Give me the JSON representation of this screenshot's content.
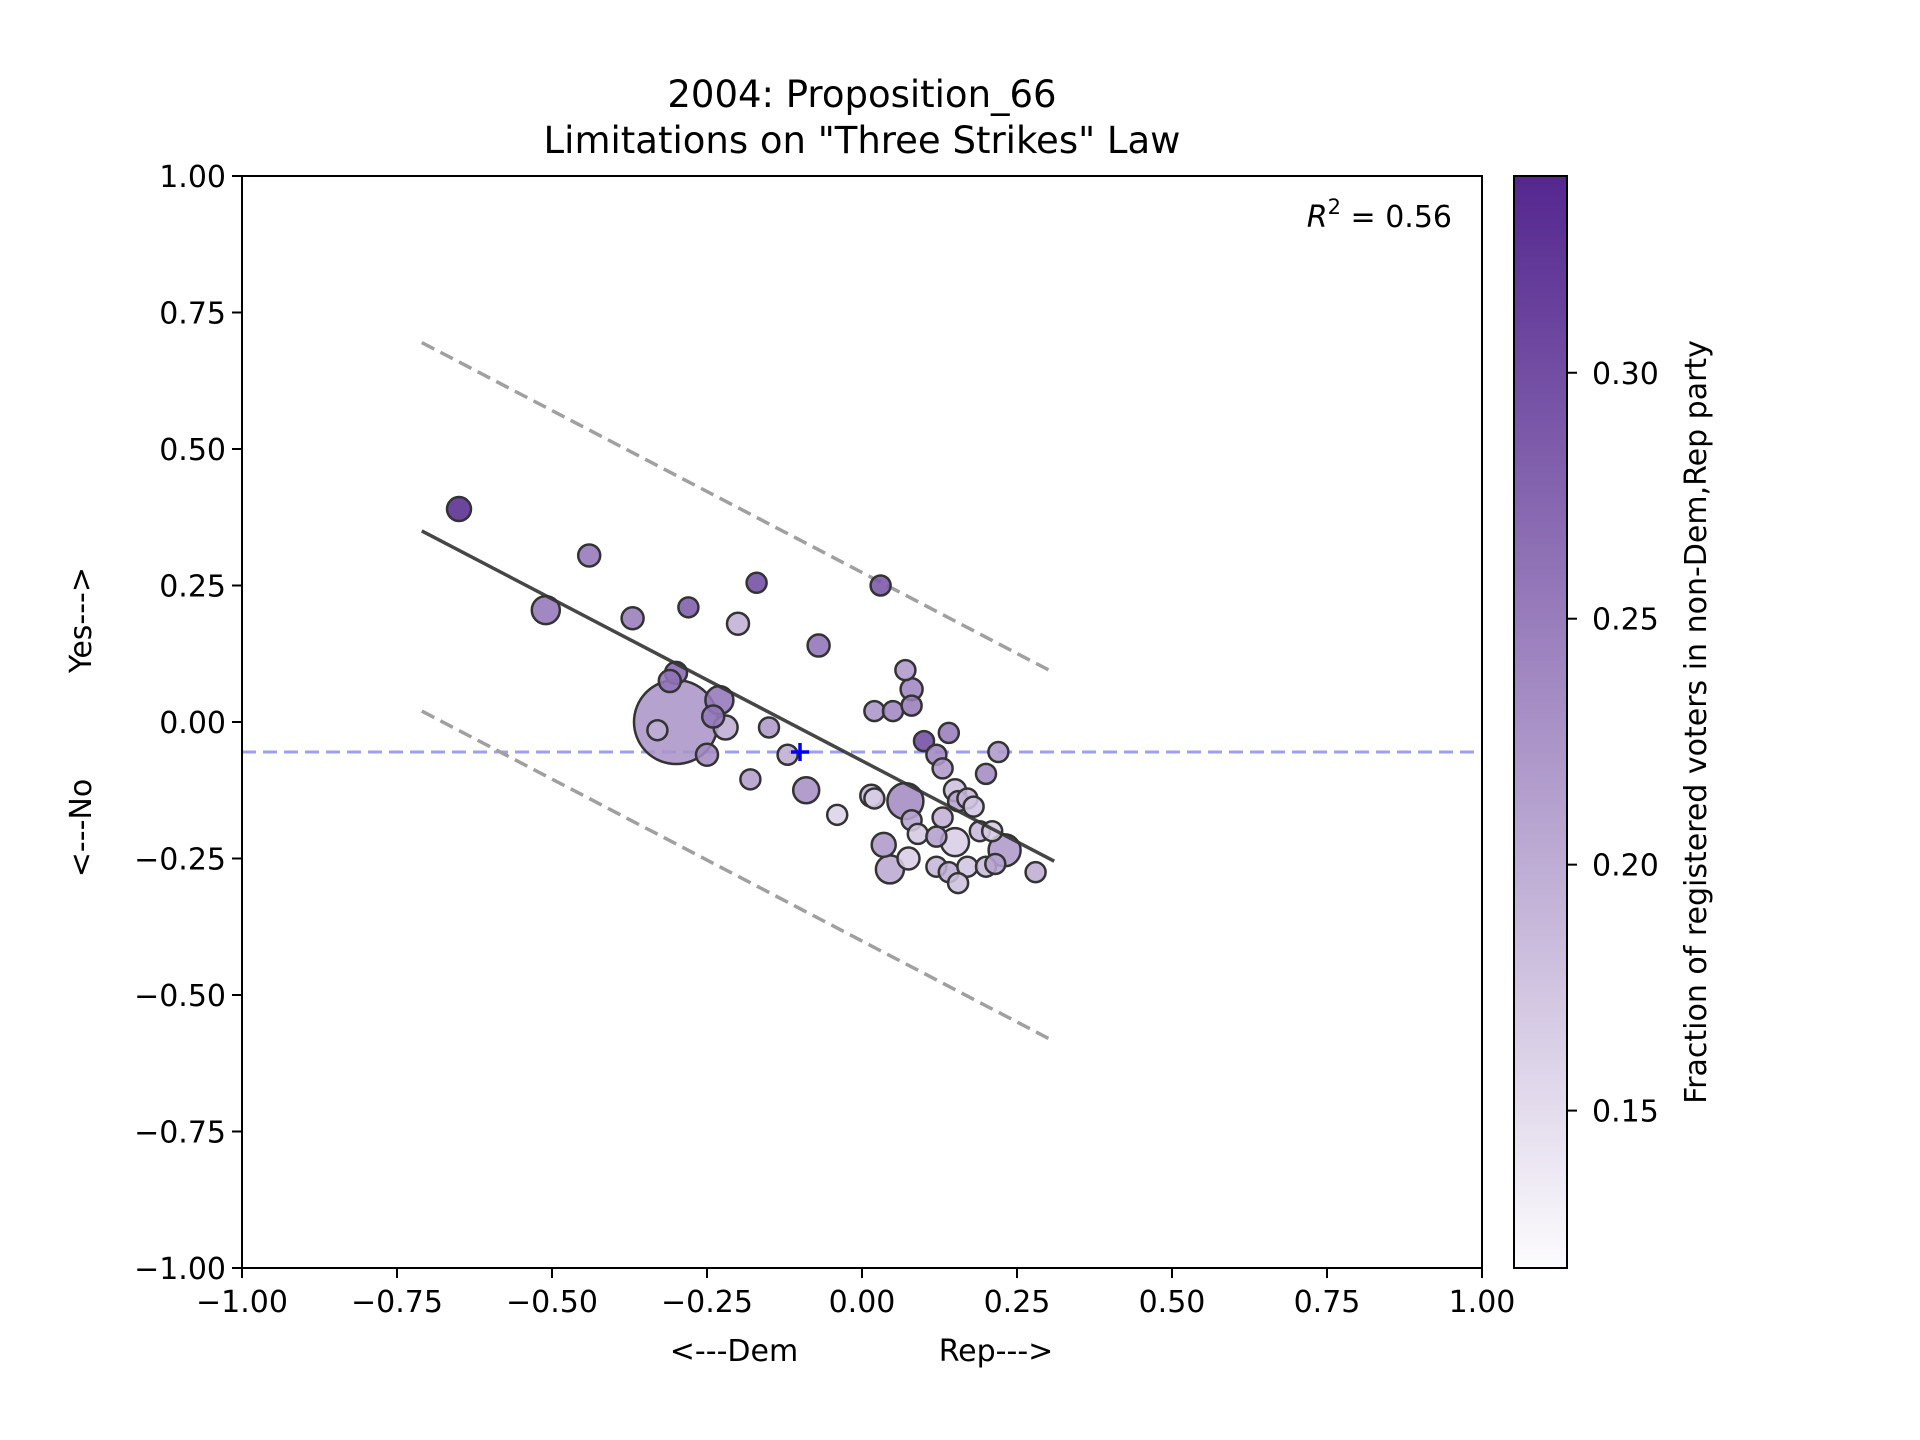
{
  "chart_data": {
    "type": "scatter",
    "title": "2004: Proposition_66",
    "subtitle": "Limitations on \"Three Strikes\" Law",
    "xlabel_left": "<---Dem",
    "xlabel_right": "Rep--->",
    "ylabel_bottom": "<---No",
    "ylabel_top": "Yes--->",
    "xlim": [
      -1.0,
      1.0
    ],
    "ylim": [
      -1.0,
      1.0
    ],
    "x_ticks": [
      -1.0,
      -0.75,
      -0.5,
      -0.25,
      0.0,
      0.25,
      0.5,
      0.75,
      1.0
    ],
    "y_ticks": [
      -1.0,
      -0.75,
      -0.5,
      -0.25,
      0.0,
      0.25,
      0.5,
      0.75,
      1.0
    ],
    "x_tick_labels": [
      "−1.00",
      "−0.75",
      "−0.50",
      "−0.25",
      "0.00",
      "0.25",
      "0.50",
      "0.75",
      "1.00"
    ],
    "y_tick_labels": [
      "−1.00",
      "−0.75",
      "−0.50",
      "−0.25",
      "0.00",
      "0.25",
      "0.50",
      "0.75",
      "1.00"
    ],
    "annotation": {
      "prefix": "R",
      "sup": "2",
      "suffix": " = 0.56"
    },
    "grid": false,
    "colorbar": {
      "label": "Fraction of registered voters in non-Dem,Rep party",
      "range": [
        0.118,
        0.34
      ],
      "ticks": [
        0.15,
        0.2,
        0.25,
        0.3
      ],
      "tick_labels": [
        "0.15",
        "0.20",
        "0.25",
        "0.30"
      ],
      "color_low": "#fcfbfd",
      "color_high": "#54278f"
    },
    "fit_line": {
      "x": [
        -0.71,
        0.31
      ],
      "y": [
        0.35,
        -0.255
      ]
    },
    "upper_band": {
      "x": [
        -0.71,
        0.31
      ],
      "y": [
        0.695,
        0.09
      ]
    },
    "lower_band": {
      "x": [
        -0.71,
        0.31
      ],
      "y": [
        0.02,
        -0.585
      ]
    },
    "mean_line_y": -0.055,
    "mean_marker": {
      "x": -0.1,
      "y": -0.055
    },
    "line_colors": {
      "fit": "#333333",
      "band": "#a0a0a0",
      "mean": "#8080ee",
      "marker": "#0000ff"
    },
    "points": [
      {
        "x": -0.65,
        "y": 0.39,
        "s": 12,
        "c": 0.335
      },
      {
        "x": -0.44,
        "y": 0.305,
        "s": 11,
        "c": 0.255
      },
      {
        "x": -0.51,
        "y": 0.205,
        "s": 14,
        "c": 0.255
      },
      {
        "x": -0.37,
        "y": 0.19,
        "s": 11,
        "c": 0.25
      },
      {
        "x": -0.28,
        "y": 0.21,
        "s": 10,
        "c": 0.285
      },
      {
        "x": -0.2,
        "y": 0.18,
        "s": 11,
        "c": 0.195
      },
      {
        "x": -0.17,
        "y": 0.255,
        "s": 10,
        "c": 0.3
      },
      {
        "x": -0.07,
        "y": 0.14,
        "s": 11,
        "c": 0.26
      },
      {
        "x": 0.03,
        "y": 0.25,
        "s": 10,
        "c": 0.29
      },
      {
        "x": -0.3,
        "y": 0.09,
        "s": 11,
        "c": 0.27
      },
      {
        "x": -0.31,
        "y": 0.075,
        "s": 11,
        "c": 0.26
      },
      {
        "x": -0.3,
        "y": 0.0,
        "s": 42,
        "c": 0.225
      },
      {
        "x": -0.33,
        "y": -0.015,
        "s": 10,
        "c": 0.2
      },
      {
        "x": -0.23,
        "y": 0.04,
        "s": 14,
        "c": 0.255
      },
      {
        "x": -0.24,
        "y": 0.01,
        "s": 11,
        "c": 0.255
      },
      {
        "x": -0.22,
        "y": -0.01,
        "s": 12,
        "c": 0.2
      },
      {
        "x": -0.25,
        "y": -0.06,
        "s": 11,
        "c": 0.235
      },
      {
        "x": -0.15,
        "y": -0.01,
        "s": 10,
        "c": 0.22
      },
      {
        "x": -0.18,
        "y": -0.105,
        "s": 10,
        "c": 0.215
      },
      {
        "x": -0.12,
        "y": -0.06,
        "s": 10,
        "c": 0.2
      },
      {
        "x": -0.09,
        "y": -0.125,
        "s": 13,
        "c": 0.23
      },
      {
        "x": -0.04,
        "y": -0.17,
        "s": 10,
        "c": 0.16
      },
      {
        "x": 0.02,
        "y": 0.02,
        "s": 10,
        "c": 0.225
      },
      {
        "x": 0.05,
        "y": 0.02,
        "s": 10,
        "c": 0.24
      },
      {
        "x": 0.07,
        "y": 0.095,
        "s": 10,
        "c": 0.22
      },
      {
        "x": 0.08,
        "y": 0.06,
        "s": 11,
        "c": 0.24
      },
      {
        "x": 0.08,
        "y": 0.03,
        "s": 10,
        "c": 0.25
      },
      {
        "x": 0.1,
        "y": -0.035,
        "s": 10,
        "c": 0.3
      },
      {
        "x": 0.14,
        "y": -0.02,
        "s": 10,
        "c": 0.25
      },
      {
        "x": 0.12,
        "y": -0.06,
        "s": 10,
        "c": 0.24
      },
      {
        "x": 0.13,
        "y": -0.085,
        "s": 10,
        "c": 0.22
      },
      {
        "x": 0.22,
        "y": -0.055,
        "s": 10,
        "c": 0.22
      },
      {
        "x": 0.2,
        "y": -0.095,
        "s": 10,
        "c": 0.235
      },
      {
        "x": 0.015,
        "y": -0.135,
        "s": 11,
        "c": 0.19
      },
      {
        "x": 0.02,
        "y": -0.14,
        "s": 10,
        "c": 0.165
      },
      {
        "x": 0.07,
        "y": -0.145,
        "s": 18,
        "c": 0.235
      },
      {
        "x": 0.15,
        "y": -0.125,
        "s": 11,
        "c": 0.18
      },
      {
        "x": 0.155,
        "y": -0.145,
        "s": 10,
        "c": 0.21
      },
      {
        "x": 0.17,
        "y": -0.14,
        "s": 10,
        "c": 0.19
      },
      {
        "x": 0.18,
        "y": -0.155,
        "s": 10,
        "c": 0.175
      },
      {
        "x": 0.13,
        "y": -0.175,
        "s": 10,
        "c": 0.195
      },
      {
        "x": 0.08,
        "y": -0.18,
        "s": 10,
        "c": 0.21
      },
      {
        "x": 0.09,
        "y": -0.205,
        "s": 10,
        "c": 0.17
      },
      {
        "x": 0.12,
        "y": -0.21,
        "s": 10,
        "c": 0.215
      },
      {
        "x": 0.035,
        "y": -0.225,
        "s": 12,
        "c": 0.22
      },
      {
        "x": 0.075,
        "y": -0.25,
        "s": 11,
        "c": 0.165
      },
      {
        "x": 0.045,
        "y": -0.27,
        "s": 14,
        "c": 0.205
      },
      {
        "x": 0.15,
        "y": -0.22,
        "s": 14,
        "c": 0.165
      },
      {
        "x": 0.19,
        "y": -0.2,
        "s": 10,
        "c": 0.19
      },
      {
        "x": 0.21,
        "y": -0.2,
        "s": 10,
        "c": 0.17
      },
      {
        "x": 0.23,
        "y": -0.235,
        "s": 16,
        "c": 0.22
      },
      {
        "x": 0.12,
        "y": -0.265,
        "s": 10,
        "c": 0.19
      },
      {
        "x": 0.14,
        "y": -0.275,
        "s": 10,
        "c": 0.2
      },
      {
        "x": 0.17,
        "y": -0.265,
        "s": 10,
        "c": 0.175
      },
      {
        "x": 0.2,
        "y": -0.265,
        "s": 10,
        "c": 0.185
      },
      {
        "x": 0.215,
        "y": -0.26,
        "s": 10,
        "c": 0.21
      },
      {
        "x": 0.155,
        "y": -0.295,
        "s": 10,
        "c": 0.18
      },
      {
        "x": 0.28,
        "y": -0.275,
        "s": 10,
        "c": 0.2
      }
    ]
  }
}
